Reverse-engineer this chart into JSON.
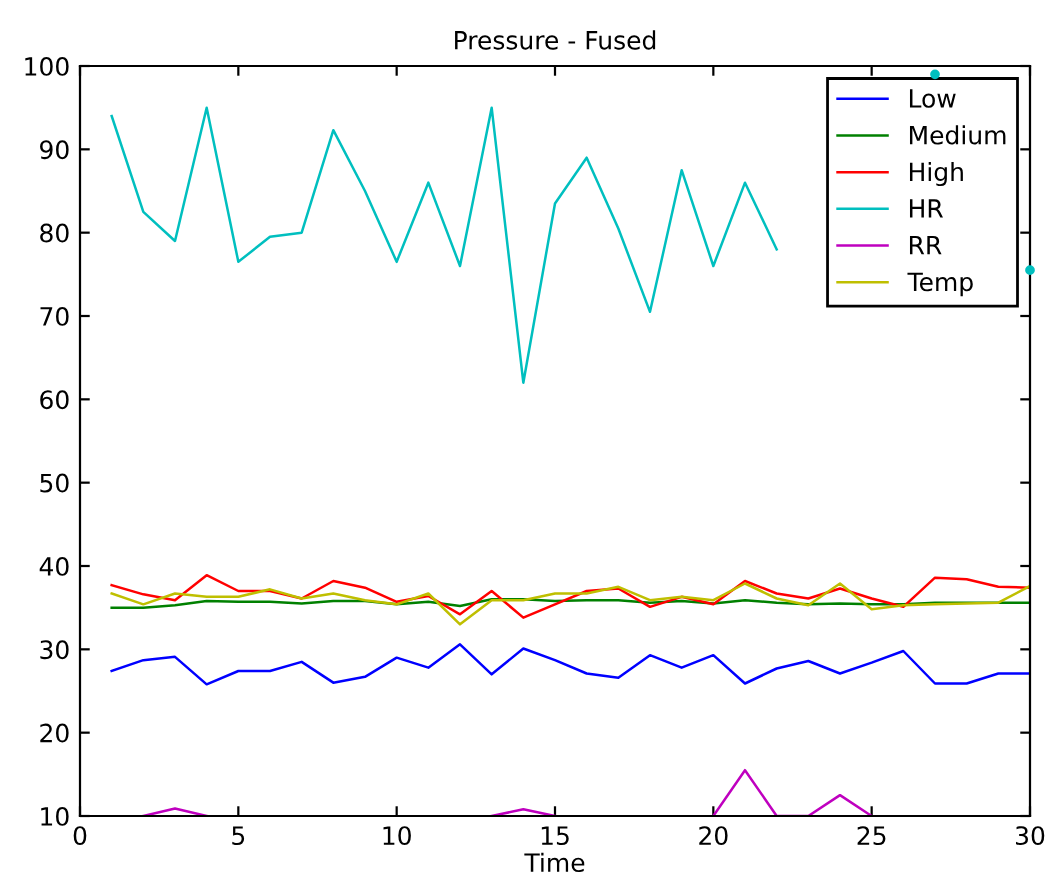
{
  "chart_data": {
    "type": "line",
    "title": "Pressure - Fused",
    "xlabel": "Time",
    "x": [
      1,
      2,
      3,
      4,
      5,
      6,
      7,
      8,
      9,
      10,
      11,
      12,
      13,
      14,
      15,
      16,
      17,
      18,
      19,
      20,
      21,
      22,
      23,
      24,
      25,
      26,
      27,
      28,
      29,
      30
    ],
    "series": [
      {
        "name": "Low",
        "color": "#0000ff",
        "values": [
          27.4,
          28.7,
          29.1,
          25.8,
          27.4,
          27.4,
          28.5,
          26.0,
          26.7,
          29.0,
          27.8,
          30.6,
          27.0,
          30.1,
          28.7,
          27.1,
          26.6,
          29.3,
          27.8,
          29.3,
          25.9,
          27.7,
          28.6,
          27.1,
          28.4,
          29.8,
          25.9,
          25.9,
          27.1,
          27.1
        ]
      },
      {
        "name": "Medium",
        "color": "#008000",
        "values": [
          35.0,
          35.0,
          35.3,
          35.8,
          35.7,
          35.7,
          35.5,
          35.8,
          35.8,
          35.4,
          35.7,
          35.2,
          36.0,
          36.0,
          35.8,
          35.9,
          35.9,
          35.6,
          35.8,
          35.5,
          35.9,
          35.6,
          35.4,
          35.5,
          35.4,
          35.4,
          35.6,
          35.6,
          35.6,
          35.6
        ]
      },
      {
        "name": "High",
        "color": "#ff0000",
        "values": [
          37.7,
          36.6,
          35.9,
          38.9,
          37.0,
          37.0,
          36.1,
          38.2,
          37.4,
          35.7,
          36.4,
          34.2,
          37.0,
          33.8,
          35.4,
          37.0,
          37.3,
          35.1,
          36.3,
          35.4,
          38.2,
          36.7,
          36.1,
          37.3,
          36.1,
          35.1,
          38.6,
          38.4,
          37.5,
          37.4
        ]
      },
      {
        "name": "HR",
        "color": "#00bfbf",
        "values": [
          94,
          82.5,
          79,
          95,
          76.5,
          79.5,
          80,
          92.3,
          85,
          76.5,
          86,
          76,
          95,
          62,
          83.5,
          89,
          80.5,
          70.5,
          87.5,
          76,
          86,
          78,
          null,
          null,
          null,
          null,
          99,
          null,
          null,
          75.5
        ]
      },
      {
        "name": "RR",
        "color": "#bf00bf",
        "values": [
          null,
          10,
          10.9,
          10,
          null,
          null,
          null,
          null,
          null,
          null,
          null,
          null,
          10,
          10.8,
          10,
          null,
          null,
          null,
          null,
          10,
          15.5,
          10,
          10,
          12.5,
          10,
          null,
          null,
          null,
          null,
          null
        ]
      },
      {
        "name": "Temp",
        "color": "#bfbf00",
        "values": [
          36.7,
          35.4,
          36.7,
          36.3,
          36.3,
          37.2,
          36.1,
          36.7,
          35.9,
          35.4,
          36.7,
          33.0,
          35.9,
          35.9,
          36.7,
          36.7,
          37.5,
          35.9,
          36.3,
          35.9,
          37.9,
          36.1,
          35.3,
          37.9,
          34.8,
          35.3,
          35.4,
          35.5,
          35.6,
          37.6
        ]
      }
    ],
    "xlim": [
      0,
      30
    ],
    "ylim": [
      10,
      100
    ],
    "xticks": [
      0,
      5,
      10,
      15,
      20,
      25,
      30
    ],
    "yticks": [
      10,
      20,
      30,
      40,
      50,
      60,
      70,
      80,
      90,
      100
    ],
    "grid": false,
    "legend": "top right",
    "marker": "none",
    "line_style": "solid"
  }
}
